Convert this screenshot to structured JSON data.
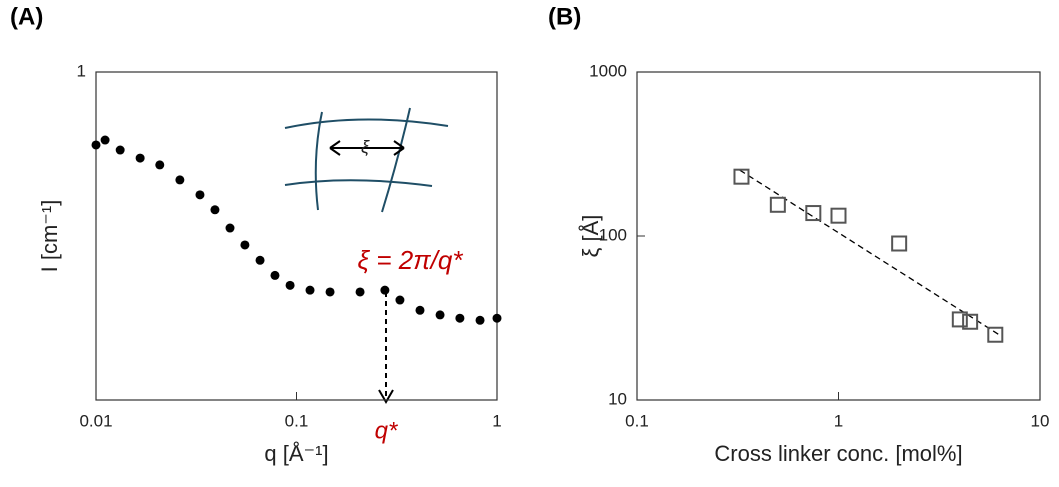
{
  "chart_data": [
    {
      "type": "scatter",
      "panel_label": "(A)",
      "x_label": "q [Å⁻¹]",
      "y_label": "I [cm⁻¹]",
      "log_x": true,
      "log_y": true,
      "xlim": [
        0.01,
        1
      ],
      "ylim": [
        0.3,
        1
      ],
      "xticks": [
        0.01,
        0.1,
        1
      ],
      "yticks": [
        1
      ],
      "series": [
        {
          "color": "#000000",
          "x": [
            0.01,
            0.0111,
            0.0132,
            0.0166,
            0.0208,
            0.0262,
            0.033,
            0.0392,
            0.0466,
            0.0553,
            0.0658,
            0.0781,
            0.0929,
            0.1168,
            0.147,
            0.2075,
            0.276,
            0.328,
            0.413,
            0.52,
            0.653,
            0.823,
            1.0
          ],
          "values": [
            0.765,
            0.779,
            0.751,
            0.729,
            0.711,
            0.673,
            0.637,
            0.603,
            0.564,
            0.53,
            0.501,
            0.474,
            0.457,
            0.449,
            0.446,
            0.446,
            0.449,
            0.433,
            0.417,
            0.41,
            0.405,
            0.402,
            0.405
          ]
        }
      ],
      "inset_label": "ξ",
      "annotations": [
        "ξ = 2π/q*",
        "q*"
      ],
      "annotation_color": "#c00000"
    },
    {
      "type": "scatter",
      "panel_label": "(B)",
      "x_label": "Cross linker conc. [mol%]",
      "y_label": "ξ [Å]",
      "log_x": true,
      "log_y": true,
      "xlim": [
        0.1,
        10
      ],
      "ylim": [
        10,
        1000
      ],
      "xticks": [
        0.1,
        1,
        10
      ],
      "yticks": [
        10,
        100,
        1000
      ],
      "series": [
        {
          "color": "#555555",
          "marker": "square",
          "x": [
            0.33,
            0.5,
            0.75,
            1.0,
            2.0,
            4.0,
            4.5,
            6.0
          ],
          "values": [
            230,
            155,
            138,
            133,
            90,
            31,
            30,
            25
          ]
        }
      ],
      "fit": {
        "x": [
          0.324,
          6.3
        ],
        "values": [
          252,
          24.9
        ],
        "color": "#000000"
      }
    }
  ]
}
